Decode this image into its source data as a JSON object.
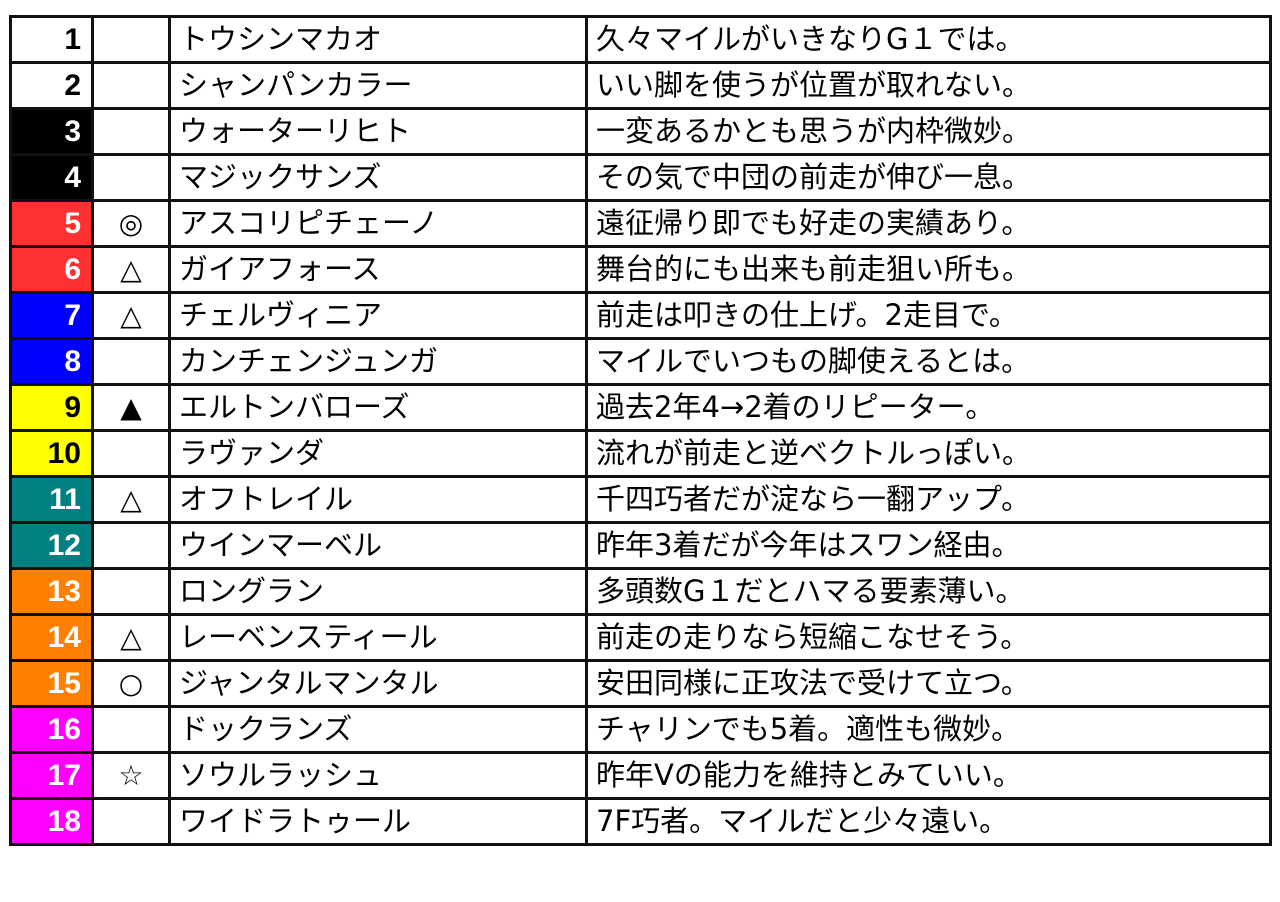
{
  "waku_colors": {
    "1": "#ffffff",
    "2": "#000000",
    "3": "#ff3030",
    "4": "#0000ff",
    "5": "#ffff00",
    "6": "#008080",
    "7": "#ff8000",
    "8": "#ff00ff"
  },
  "rows": [
    {
      "number": "1",
      "waku": 1,
      "mark": "",
      "name": "トウシンマカオ",
      "comment": "久々マイルがいきなりG１では。"
    },
    {
      "number": "2",
      "waku": 1,
      "mark": "",
      "name": "シャンパンカラー",
      "comment": "いい脚を使うが位置が取れない。"
    },
    {
      "number": "3",
      "waku": 2,
      "mark": "",
      "name": "ウォーターリヒト",
      "comment": "一変あるかとも思うが内枠微妙。"
    },
    {
      "number": "4",
      "waku": 2,
      "mark": "",
      "name": "マジックサンズ",
      "comment": "その気で中団の前走が伸び一息。"
    },
    {
      "number": "5",
      "waku": 3,
      "mark": "◎",
      "name": "アスコリピチェーノ",
      "comment": "遠征帰り即でも好走の実績あり。"
    },
    {
      "number": "6",
      "waku": 3,
      "mark": "△",
      "name": "ガイアフォース",
      "comment": "舞台的にも出来も前走狙い所も。"
    },
    {
      "number": "7",
      "waku": 4,
      "mark": "△",
      "name": "チェルヴィニア",
      "comment": "前走は叩きの仕上げ。2走目で。"
    },
    {
      "number": "8",
      "waku": 4,
      "mark": "",
      "name": "カンチェンジュンガ",
      "comment": "マイルでいつもの脚使えるとは。"
    },
    {
      "number": "9",
      "waku": 5,
      "mark": "▲",
      "name": "エルトンバローズ",
      "comment": "過去2年4→2着のリピーター。"
    },
    {
      "number": "10",
      "waku": 5,
      "mark": "",
      "name": "ラヴァンダ",
      "comment": "流れが前走と逆ベクトルっぽい。"
    },
    {
      "number": "11",
      "waku": 6,
      "mark": "△",
      "name": "オフトレイル",
      "comment": "千四巧者だが淀なら一翻アップ。"
    },
    {
      "number": "12",
      "waku": 6,
      "mark": "",
      "name": "ウインマーベル",
      "comment": "昨年3着だが今年はスワン経由。"
    },
    {
      "number": "13",
      "waku": 7,
      "mark": "",
      "name": "ロングラン",
      "comment": "多頭数G１だとハマる要素薄い。"
    },
    {
      "number": "14",
      "waku": 7,
      "mark": "△",
      "name": "レーベンスティール",
      "comment": "前走の走りなら短縮こなせそう。"
    },
    {
      "number": "15",
      "waku": 7,
      "mark": "○",
      "name": "ジャンタルマンタル",
      "comment": "安田同様に正攻法で受けて立つ。"
    },
    {
      "number": "16",
      "waku": 8,
      "mark": "",
      "name": "ドックランズ",
      "comment": "チャリンでも5着。適性も微妙。"
    },
    {
      "number": "17",
      "waku": 8,
      "mark": "☆",
      "name": "ソウルラッシュ",
      "comment": "昨年Vの能力を維持とみていい。"
    },
    {
      "number": "18",
      "waku": 8,
      "mark": "",
      "name": "ワイドラトゥール",
      "comment": "7F巧者。マイルだと少々遠い。"
    }
  ]
}
